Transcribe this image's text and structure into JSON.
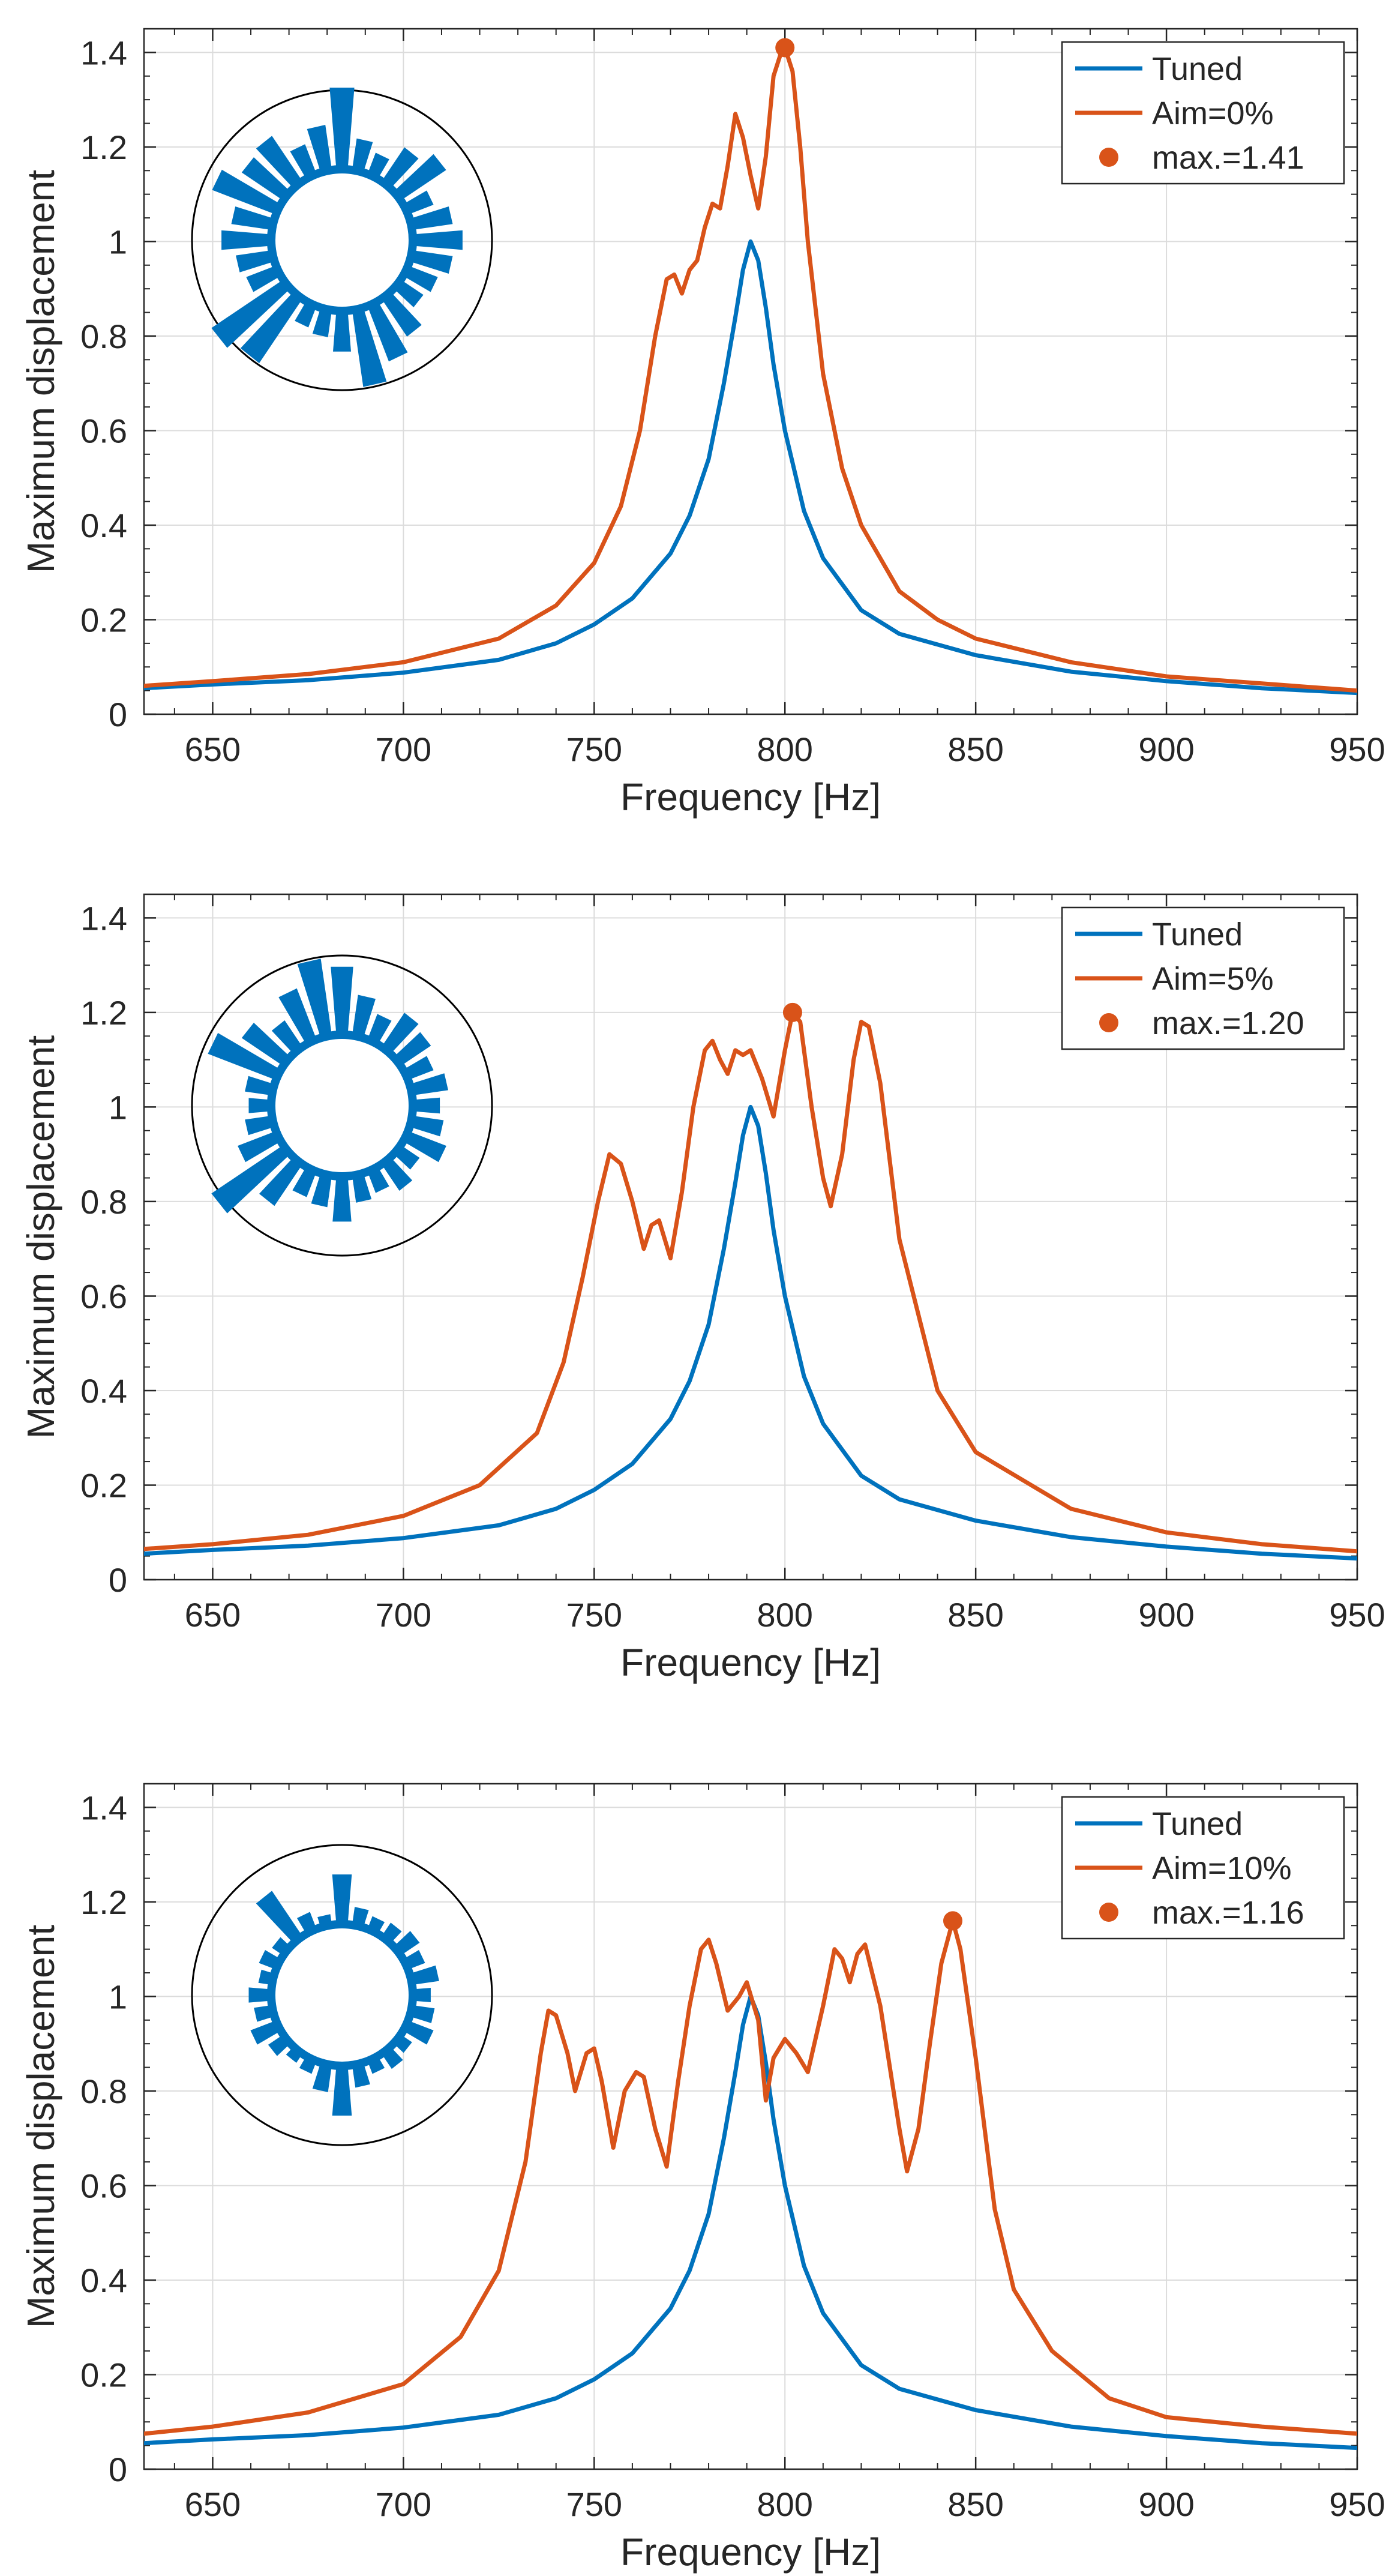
{
  "chart_data": [
    {
      "type": "line",
      "xlabel": "Frequency [Hz]",
      "ylabel": "Maximum displacement",
      "xlim": [
        632,
        950
      ],
      "ylim": [
        0,
        1.45
      ],
      "xticks": [
        "650",
        "700",
        "750",
        "800",
        "850",
        "900",
        "950"
      ],
      "yticks": [
        "0",
        "0.2",
        "0.4",
        "0.6",
        "0.8",
        "1",
        "1.2",
        "1.4"
      ],
      "grid": true,
      "legend_position": "top-right",
      "series": [
        {
          "name": "Tuned",
          "color": "#0072BD",
          "x": [
            632,
            650,
            675,
            700,
            725,
            740,
            750,
            760,
            770,
            775,
            780,
            784,
            787,
            789,
            791,
            793,
            795,
            797,
            800,
            805,
            810,
            820,
            830,
            850,
            875,
            900,
            925,
            950
          ],
          "y": [
            0.055,
            0.063,
            0.072,
            0.088,
            0.115,
            0.15,
            0.19,
            0.245,
            0.34,
            0.42,
            0.54,
            0.7,
            0.84,
            0.94,
            1.0,
            0.96,
            0.86,
            0.74,
            0.6,
            0.43,
            0.33,
            0.22,
            0.17,
            0.125,
            0.09,
            0.07,
            0.055,
            0.045
          ]
        },
        {
          "name": "Aim=0%",
          "color": "#D95319",
          "x": [
            632,
            650,
            675,
            700,
            725,
            740,
            750,
            757,
            762,
            766,
            769,
            771,
            773,
            775,
            777,
            779,
            781,
            783,
            785,
            787,
            789,
            791,
            793,
            795,
            797,
            799,
            800,
            802,
            804,
            806,
            810,
            815,
            820,
            830,
            840,
            850,
            875,
            900,
            925,
            950
          ],
          "y": [
            0.06,
            0.07,
            0.085,
            0.11,
            0.16,
            0.23,
            0.32,
            0.44,
            0.6,
            0.8,
            0.92,
            0.93,
            0.89,
            0.94,
            0.96,
            1.03,
            1.08,
            1.07,
            1.16,
            1.27,
            1.22,
            1.14,
            1.07,
            1.18,
            1.35,
            1.4,
            1.41,
            1.36,
            1.2,
            1.0,
            0.72,
            0.52,
            0.4,
            0.26,
            0.2,
            0.16,
            0.11,
            0.08,
            0.065,
            0.05
          ]
        },
        {
          "name": "max.=1.41",
          "color": "#D95319",
          "marker": "circle",
          "x": [
            800
          ],
          "y": [
            1.41
          ]
        }
      ],
      "inset_polar": {
        "values": [
          0.9,
          0.35,
          0.25,
          0.45,
          0.6,
          0.3,
          0.45,
          0.55,
          0.45,
          0.35,
          0.3,
          0.5,
          0.65,
          0.85,
          0.45,
          0.3,
          0.25,
          0.85,
          0.95,
          0.35,
          0.4,
          0.55,
          0.45,
          0.75,
          0.55,
          0.6,
          0.35,
          0.5
        ],
        "color": "#0072BD"
      }
    },
    {
      "type": "line",
      "xlabel": "Frequency [Hz]",
      "ylabel": "Maximum displacement",
      "xlim": [
        632,
        950
      ],
      "ylim": [
        0,
        1.45
      ],
      "xticks": [
        "650",
        "700",
        "750",
        "800",
        "850",
        "900",
        "950"
      ],
      "yticks": [
        "0",
        "0.2",
        "0.4",
        "0.6",
        "0.8",
        "1",
        "1.2",
        "1.4"
      ],
      "grid": true,
      "legend_position": "top-right",
      "series": [
        {
          "name": "Tuned",
          "color": "#0072BD",
          "x": [
            632,
            650,
            675,
            700,
            725,
            740,
            750,
            760,
            770,
            775,
            780,
            784,
            787,
            789,
            791,
            793,
            795,
            797,
            800,
            805,
            810,
            820,
            830,
            850,
            875,
            900,
            925,
            950
          ],
          "y": [
            0.055,
            0.063,
            0.072,
            0.088,
            0.115,
            0.15,
            0.19,
            0.245,
            0.34,
            0.42,
            0.54,
            0.7,
            0.84,
            0.94,
            1.0,
            0.96,
            0.86,
            0.74,
            0.6,
            0.43,
            0.33,
            0.22,
            0.17,
            0.125,
            0.09,
            0.07,
            0.055,
            0.045
          ]
        },
        {
          "name": "Aim=5%",
          "color": "#D95319",
          "x": [
            632,
            650,
            675,
            700,
            720,
            735,
            742,
            747,
            751,
            754,
            757,
            760,
            763,
            765,
            767,
            770,
            773,
            776,
            779,
            781,
            783,
            785,
            787,
            789,
            791,
            794,
            797,
            800,
            802,
            804,
            807,
            810,
            812,
            815,
            818,
            820,
            822,
            825,
            830,
            840,
            850,
            875,
            900,
            925,
            950
          ],
          "y": [
            0.065,
            0.075,
            0.095,
            0.135,
            0.2,
            0.31,
            0.46,
            0.64,
            0.8,
            0.9,
            0.88,
            0.8,
            0.7,
            0.75,
            0.76,
            0.68,
            0.82,
            1.0,
            1.12,
            1.14,
            1.1,
            1.07,
            1.12,
            1.11,
            1.12,
            1.06,
            0.98,
            1.12,
            1.2,
            1.18,
            1.0,
            0.85,
            0.79,
            0.9,
            1.1,
            1.18,
            1.17,
            1.05,
            0.72,
            0.4,
            0.27,
            0.15,
            0.1,
            0.075,
            0.06
          ]
        },
        {
          "name": "max.=1.20",
          "color": "#D95319",
          "marker": "circle",
          "x": [
            802
          ],
          "y": [
            1.2
          ]
        }
      ],
      "inset_polar": {
        "values": [
          0.75,
          0.45,
          0.3,
          0.45,
          0.4,
          0.3,
          0.4,
          0.3,
          0.35,
          0.45,
          0.25,
          0.35,
          0.25,
          0.3,
          0.5,
          0.35,
          0.3,
          0.55,
          0.95,
          0.45,
          0.3,
          0.25,
          0.3,
          0.8,
          0.55,
          0.35,
          0.6,
          0.85
        ],
        "color": "#0072BD"
      }
    },
    {
      "type": "line",
      "xlabel": "Frequency [Hz]",
      "ylabel": "Maximum displacement",
      "xlim": [
        632,
        950
      ],
      "ylim": [
        0,
        1.45
      ],
      "xticks": [
        "650",
        "700",
        "750",
        "800",
        "850",
        "900",
        "950"
      ],
      "yticks": [
        "0",
        "0.2",
        "0.4",
        "0.6",
        "0.8",
        "1",
        "1.2",
        "1.4"
      ],
      "grid": true,
      "legend_position": "top-right",
      "series": [
        {
          "name": "Tuned",
          "color": "#0072BD",
          "x": [
            632,
            650,
            675,
            700,
            725,
            740,
            750,
            760,
            770,
            775,
            780,
            784,
            787,
            789,
            791,
            793,
            795,
            797,
            800,
            805,
            810,
            820,
            830,
            850,
            875,
            900,
            925,
            950
          ],
          "y": [
            0.055,
            0.063,
            0.072,
            0.088,
            0.115,
            0.15,
            0.19,
            0.245,
            0.34,
            0.42,
            0.54,
            0.7,
            0.84,
            0.94,
            1.0,
            0.96,
            0.86,
            0.74,
            0.6,
            0.43,
            0.33,
            0.22,
            0.17,
            0.125,
            0.09,
            0.07,
            0.055,
            0.045
          ]
        },
        {
          "name": "Aim=10%",
          "color": "#D95319",
          "x": [
            632,
            650,
            675,
            700,
            715,
            725,
            732,
            736,
            738,
            740,
            743,
            745,
            748,
            750,
            752,
            755,
            758,
            761,
            763,
            766,
            769,
            772,
            775,
            778,
            780,
            782,
            785,
            788,
            790,
            793,
            795,
            797,
            800,
            803,
            806,
            810,
            813,
            815,
            817,
            819,
            821,
            825,
            830,
            832,
            835,
            838,
            841,
            844,
            846,
            850,
            855,
            860,
            870,
            885,
            900,
            925,
            950
          ],
          "y": [
            0.075,
            0.09,
            0.12,
            0.18,
            0.28,
            0.42,
            0.65,
            0.88,
            0.97,
            0.96,
            0.88,
            0.8,
            0.88,
            0.89,
            0.82,
            0.68,
            0.8,
            0.84,
            0.83,
            0.72,
            0.64,
            0.82,
            0.98,
            1.1,
            1.12,
            1.07,
            0.97,
            1.0,
            1.03,
            0.95,
            0.78,
            0.87,
            0.91,
            0.88,
            0.84,
            0.98,
            1.1,
            1.08,
            1.03,
            1.09,
            1.11,
            0.98,
            0.72,
            0.63,
            0.72,
            0.9,
            1.07,
            1.16,
            1.1,
            0.87,
            0.55,
            0.38,
            0.25,
            0.15,
            0.11,
            0.09,
            0.075
          ]
        },
        {
          "name": "max.=1.16",
          "color": "#D95319",
          "marker": "circle",
          "x": [
            844
          ],
          "y": [
            1.16
          ]
        }
      ],
      "inset_polar": {
        "values": [
          0.55,
          0.2,
          0.15,
          0.18,
          0.25,
          0.2,
          0.3,
          0.2,
          0.25,
          0.3,
          0.15,
          0.2,
          0.15,
          0.25,
          0.55,
          0.3,
          0.15,
          0.12,
          0.2,
          0.3,
          0.2,
          0.25,
          0.15,
          0.2,
          0.15,
          0.6,
          0.2,
          0.12
        ],
        "color": "#0072BD"
      }
    }
  ]
}
